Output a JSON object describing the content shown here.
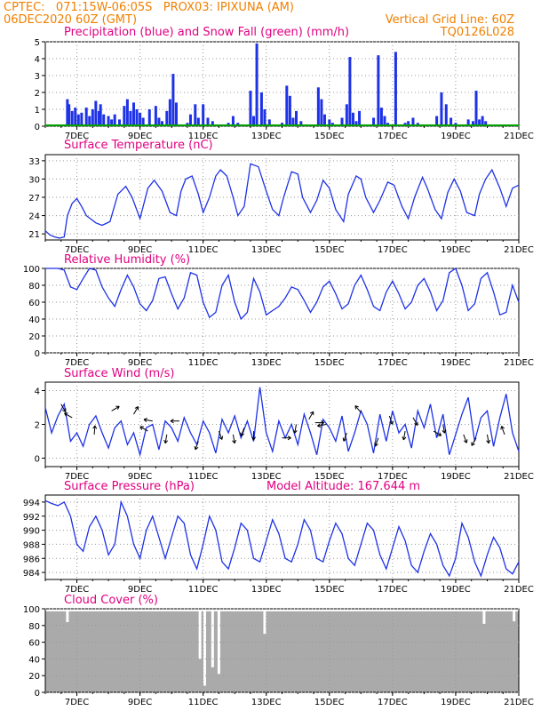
{
  "header": {
    "line1_left": "CPTEC:   071:15W-06:05S   PROX03: IPIXUNA (AM)",
    "line2_left": "06DEC2020 60Z (GMT)",
    "line2_right": "Vertical Grid Line: 60Z",
    "line3_right": "TQ0126L028"
  },
  "colors": {
    "header": "#f08000",
    "title": "#e00080",
    "line": "#1e32e6",
    "precip": "#1e32e6",
    "snow": "#00a000",
    "cloud": "#aaaaaa",
    "wind_arrow": "#000000",
    "frame": "#000000",
    "grid": "#999999"
  },
  "x_axis": {
    "min": 0,
    "max": 15,
    "tick_labels": [
      "7DEC",
      "9DEC",
      "11DEC",
      "13DEC",
      "15DEC",
      "17DEC",
      "19DEC",
      "21DEC"
    ],
    "tick_positions": [
      1,
      3,
      5,
      7,
      9,
      11,
      13,
      15
    ]
  },
  "chart_data": [
    {
      "type": "bar",
      "title": "Precipitation (blue) and Snow Fall (green) (mm/h)",
      "ylim": [
        0,
        5
      ],
      "yticks": [
        0,
        1,
        2,
        3,
        4,
        5
      ],
      "series": [
        {
          "name": "Precipitation",
          "x": [
            0.7,
            0.75,
            0.85,
            0.95,
            1.05,
            1.15,
            1.3,
            1.4,
            1.5,
            1.6,
            1.7,
            1.75,
            1.85,
            2.0,
            2.1,
            2.2,
            2.35,
            2.5,
            2.6,
            2.7,
            2.8,
            2.9,
            3.0,
            3.1,
            3.3,
            3.5,
            3.6,
            3.7,
            3.85,
            3.95,
            4.05,
            4.15,
            4.5,
            4.6,
            4.75,
            4.85,
            5.0,
            5.15,
            5.3,
            5.7,
            5.8,
            5.95,
            6.1,
            6.5,
            6.6,
            6.7,
            6.85,
            6.95,
            7.1,
            7.5,
            7.65,
            7.75,
            7.85,
            7.95,
            8.1,
            8.5,
            8.65,
            8.75,
            8.85,
            9.0,
            9.1,
            9.4,
            9.55,
            9.65,
            9.75,
            9.85,
            9.95,
            10.4,
            10.55,
            10.65,
            10.75,
            10.85,
            11.1,
            11.4,
            11.5,
            11.65,
            11.8,
            12.4,
            12.55,
            12.7,
            12.85,
            13.0,
            13.4,
            13.55,
            13.65,
            13.75,
            13.85,
            13.95
          ],
          "values": [
            1.6,
            1.3,
            0.9,
            1.1,
            0.7,
            0.8,
            1.1,
            0.6,
            1.0,
            1.5,
            0.9,
            1.3,
            0.7,
            0.6,
            0.4,
            0.7,
            0.4,
            1.2,
            1.6,
            0.9,
            1.4,
            1.0,
            0.8,
            0.5,
            1.0,
            1.2,
            0.5,
            0.3,
            0.9,
            1.6,
            3.1,
            1.4,
            0.2,
            0.7,
            1.3,
            0.5,
            1.3,
            0.5,
            0.3,
            0.1,
            0.2,
            0.6,
            0.2,
            2.1,
            0.6,
            4.9,
            2.0,
            1.0,
            0.4,
            0.2,
            2.4,
            1.8,
            0.5,
            0.9,
            0.3,
            0.1,
            2.3,
            1.6,
            0.7,
            0.4,
            0.2,
            0.5,
            1.3,
            4.1,
            0.8,
            0.3,
            0.9,
            0.5,
            4.2,
            1.1,
            0.6,
            0.2,
            4.4,
            0.2,
            0.3,
            0.5,
            0.2,
            0.6,
            2.0,
            1.3,
            0.5,
            0.2,
            0.4,
            0.3,
            2.1,
            0.4,
            0.6,
            0.3
          ]
        },
        {
          "name": "Snow Fall",
          "values": [
            0
          ]
        }
      ]
    },
    {
      "type": "line",
      "title": "Surface Temperature (nC)",
      "ylim": [
        20,
        34
      ],
      "yticks": [
        21,
        24,
        27,
        30,
        33
      ],
      "x": [
        0,
        0.15,
        0.3,
        0.45,
        0.6,
        0.7,
        0.85,
        1.0,
        1.15,
        1.3,
        1.6,
        1.8,
        2.05,
        2.3,
        2.55,
        2.75,
        3.0,
        3.25,
        3.45,
        3.7,
        3.95,
        4.15,
        4.3,
        4.45,
        4.65,
        4.85,
        5.0,
        5.2,
        5.4,
        5.55,
        5.75,
        5.95,
        6.1,
        6.3,
        6.5,
        6.75,
        7.0,
        7.2,
        7.4,
        7.55,
        7.8,
        8.0,
        8.15,
        8.4,
        8.6,
        8.8,
        9.0,
        9.2,
        9.45,
        9.6,
        9.85,
        10.0,
        10.15,
        10.4,
        10.6,
        10.85,
        11.05,
        11.3,
        11.5,
        11.7,
        11.95,
        12.1,
        12.35,
        12.55,
        12.75,
        12.95,
        13.15,
        13.35,
        13.6,
        13.75,
        13.95,
        14.15,
        14.4,
        14.6,
        14.8,
        15.0
      ],
      "values": [
        21.5,
        20.8,
        20.5,
        20.3,
        20.5,
        24.0,
        26.0,
        26.8,
        25.5,
        24.0,
        22.8,
        22.4,
        23.0,
        27.5,
        28.8,
        27.0,
        23.5,
        28.5,
        29.8,
        28.0,
        24.5,
        24.0,
        28.0,
        30.0,
        30.5,
        27.5,
        24.5,
        27.0,
        30.5,
        31.5,
        30.5,
        27.0,
        24.0,
        25.5,
        32.5,
        32.0,
        28.0,
        25.0,
        24.0,
        27.0,
        31.2,
        30.8,
        27.0,
        24.5,
        26.5,
        29.8,
        28.5,
        25.0,
        23.0,
        27.5,
        30.5,
        30.0,
        27.0,
        24.5,
        26.5,
        29.5,
        29.0,
        25.5,
        23.5,
        27.0,
        30.3,
        28.5,
        25.0,
        23.5,
        27.8,
        30.0,
        28.0,
        24.5,
        24.0,
        27.5,
        30.0,
        31.5,
        28.5,
        25.5,
        28.5,
        29.0
      ]
    },
    {
      "type": "line",
      "title": "Relative Humidity (%)",
      "ylim": [
        0,
        100
      ],
      "yticks": [
        0,
        20,
        40,
        60,
        80,
        100
      ],
      "x": [
        0,
        0.2,
        0.4,
        0.6,
        0.8,
        1.0,
        1.2,
        1.4,
        1.6,
        1.8,
        2.0,
        2.2,
        2.4,
        2.6,
        2.8,
        3.0,
        3.2,
        3.4,
        3.6,
        3.8,
        4.0,
        4.2,
        4.4,
        4.6,
        4.8,
        5.0,
        5.2,
        5.4,
        5.6,
        5.8,
        6.0,
        6.2,
        6.4,
        6.6,
        6.8,
        7.0,
        7.2,
        7.4,
        7.6,
        7.8,
        8.0,
        8.2,
        8.4,
        8.6,
        8.8,
        9.0,
        9.2,
        9.4,
        9.6,
        9.8,
        10.0,
        10.2,
        10.4,
        10.6,
        10.8,
        11.0,
        11.2,
        11.4,
        11.6,
        11.8,
        12.0,
        12.2,
        12.4,
        12.6,
        12.8,
        13.0,
        13.2,
        13.4,
        13.6,
        13.8,
        14.0,
        14.2,
        14.4,
        14.6,
        14.8,
        15.0
      ],
      "values": [
        100,
        100,
        100,
        98,
        78,
        75,
        88,
        100,
        98,
        78,
        65,
        55,
        75,
        92,
        78,
        58,
        50,
        62,
        88,
        90,
        70,
        52,
        65,
        95,
        92,
        60,
        42,
        48,
        80,
        92,
        60,
        40,
        48,
        88,
        72,
        45,
        50,
        55,
        65,
        78,
        75,
        62,
        48,
        60,
        78,
        85,
        70,
        52,
        58,
        80,
        92,
        75,
        55,
        50,
        72,
        85,
        70,
        52,
        60,
        80,
        88,
        72,
        50,
        62,
        95,
        100,
        80,
        50,
        58,
        88,
        95,
        72,
        45,
        48,
        80,
        60
      ]
    },
    {
      "type": "line",
      "title": "Surface Wind (m/s)",
      "ylim": [
        -0.5,
        4.5
      ],
      "yticks": [
        0,
        2,
        4
      ],
      "x": [
        0,
        0.2,
        0.4,
        0.6,
        0.8,
        1.0,
        1.2,
        1.4,
        1.6,
        1.8,
        2.0,
        2.2,
        2.4,
        2.6,
        2.8,
        3.0,
        3.2,
        3.4,
        3.6,
        3.8,
        4.0,
        4.2,
        4.4,
        4.6,
        4.8,
        5.0,
        5.2,
        5.4,
        5.6,
        5.8,
        6.0,
        6.2,
        6.4,
        6.6,
        6.8,
        7.0,
        7.2,
        7.4,
        7.6,
        7.8,
        8.0,
        8.2,
        8.4,
        8.6,
        8.8,
        9.0,
        9.2,
        9.4,
        9.6,
        9.8,
        10.0,
        10.2,
        10.4,
        10.6,
        10.8,
        11.0,
        11.2,
        11.4,
        11.6,
        11.8,
        12.0,
        12.2,
        12.4,
        12.6,
        12.8,
        13.0,
        13.2,
        13.4,
        13.6,
        13.8,
        14.0,
        14.2,
        14.4,
        14.6,
        14.8,
        15.0
      ],
      "values": [
        3.0,
        1.5,
        2.5,
        3.2,
        1.0,
        1.5,
        0.7,
        2.0,
        2.5,
        1.5,
        0.6,
        1.8,
        2.2,
        0.8,
        1.5,
        0.2,
        1.8,
        2.0,
        0.5,
        2.2,
        1.8,
        1.0,
        2.4,
        1.5,
        0.8,
        2.2,
        1.5,
        0.3,
        2.3,
        1.5,
        2.5,
        1.2,
        2.2,
        1.0,
        4.2,
        1.5,
        0.4,
        2.2,
        1.2,
        2.0,
        0.8,
        2.6,
        1.5,
        0.2,
        2.3,
        1.8,
        1.0,
        2.5,
        0.4,
        1.5,
        2.8,
        2.0,
        0.3,
        2.6,
        1.0,
        2.8,
        1.5,
        2.0,
        0.6,
        2.8,
        1.8,
        3.2,
        1.2,
        2.6,
        0.2,
        1.4,
        2.6,
        3.6,
        1.0,
        2.4,
        2.8,
        0.7,
        2.4,
        3.8,
        1.5,
        0.4
      ]
    },
    {
      "type": "line",
      "title": "Surface Pressure (hPa)",
      "annotation": "Model Altitude: 167.644 m",
      "ylim": [
        983,
        995
      ],
      "yticks": [
        984,
        986,
        988,
        990,
        992,
        994
      ],
      "x": [
        0,
        0.2,
        0.4,
        0.6,
        0.8,
        1.0,
        1.2,
        1.4,
        1.6,
        1.8,
        2.0,
        2.2,
        2.4,
        2.6,
        2.8,
        3.0,
        3.2,
        3.4,
        3.6,
        3.8,
        4.0,
        4.2,
        4.4,
        4.6,
        4.8,
        5.0,
        5.2,
        5.4,
        5.6,
        5.8,
        6.0,
        6.2,
        6.4,
        6.6,
        6.8,
        7.0,
        7.2,
        7.4,
        7.6,
        7.8,
        8.0,
        8.2,
        8.4,
        8.6,
        8.8,
        9.0,
        9.2,
        9.4,
        9.6,
        9.8,
        10.0,
        10.2,
        10.4,
        10.6,
        10.8,
        11.0,
        11.2,
        11.4,
        11.6,
        11.8,
        12.0,
        12.2,
        12.4,
        12.6,
        12.8,
        13.0,
        13.2,
        13.4,
        13.6,
        13.8,
        14.0,
        14.2,
        14.4,
        14.6,
        14.8,
        15.0
      ],
      "values": [
        994.2,
        993.8,
        993.5,
        994.0,
        992.0,
        988.0,
        987.0,
        990.5,
        992.0,
        990.0,
        986.5,
        988.0,
        994.0,
        992.0,
        988.0,
        986.0,
        990.0,
        992.0,
        989.0,
        986.0,
        989.0,
        992.0,
        991.0,
        986.5,
        984.5,
        988.0,
        992.0,
        990.0,
        985.5,
        984.5,
        987.5,
        991.0,
        990.0,
        986.0,
        985.5,
        988.5,
        991.5,
        989.5,
        986.0,
        985.5,
        988.0,
        991.5,
        990.0,
        986.0,
        985.5,
        988.5,
        991.0,
        989.5,
        986.0,
        985.0,
        988.0,
        991.0,
        990.0,
        986.5,
        984.5,
        987.5,
        990.5,
        988.5,
        985.0,
        984.0,
        987.0,
        989.5,
        988.0,
        985.0,
        983.5,
        986.0,
        991.0,
        989.0,
        985.5,
        983.5,
        986.5,
        989.0,
        987.5,
        984.5,
        983.8,
        985.5
      ]
    },
    {
      "type": "bar",
      "title": "Cloud Cover (%)",
      "ylim": [
        0,
        100
      ],
      "yticks": [
        0,
        20,
        40,
        60,
        80,
        100
      ],
      "x": [
        0.7,
        4.9,
        5.05,
        5.3,
        5.5,
        6.95,
        13.9,
        14.85
      ],
      "values": [
        84,
        40,
        8,
        30,
        22,
        70,
        82,
        85
      ],
      "baseline": 97
    }
  ],
  "wind_arrows": [
    {
      "x": 0.5,
      "speed": 3.2,
      "dir": 150
    },
    {
      "x": 0.85,
      "speed": 2.4,
      "dir": 300
    },
    {
      "x": 1.55,
      "speed": 1.4,
      "dir": 5
    },
    {
      "x": 2.1,
      "speed": 2.8,
      "dir": 60
    },
    {
      "x": 2.8,
      "speed": 2.6,
      "dir": 30
    },
    {
      "x": 3.25,
      "speed": 1.6,
      "dir": 300
    },
    {
      "x": 3.4,
      "speed": 2.2,
      "dir": 280
    },
    {
      "x": 3.85,
      "speed": 1.4,
      "dir": 190
    },
    {
      "x": 4.25,
      "speed": 2.2,
      "dir": 270
    },
    {
      "x": 4.85,
      "speed": 1.0,
      "dir": 200
    },
    {
      "x": 5.5,
      "speed": 1.6,
      "dir": 160
    },
    {
      "x": 5.95,
      "speed": 1.4,
      "dir": 170
    },
    {
      "x": 6.3,
      "speed": 1.8,
      "dir": 200
    },
    {
      "x": 6.6,
      "speed": 1.6,
      "dir": 180
    },
    {
      "x": 7.5,
      "speed": 1.2,
      "dir": 90
    },
    {
      "x": 7.95,
      "speed": 2.0,
      "dir": 190
    },
    {
      "x": 8.35,
      "speed": 2.3,
      "dir": 30
    },
    {
      "x": 8.55,
      "speed": 2.1,
      "dir": 90
    },
    {
      "x": 8.9,
      "speed": 2.0,
      "dir": 260
    },
    {
      "x": 9.55,
      "speed": 1.5,
      "dir": 200
    },
    {
      "x": 10.0,
      "speed": 2.7,
      "dir": 320
    },
    {
      "x": 10.55,
      "speed": 1.2,
      "dir": 200
    },
    {
      "x": 10.9,
      "speed": 2.5,
      "dir": 160
    },
    {
      "x": 11.4,
      "speed": 1.6,
      "dir": 190
    },
    {
      "x": 11.65,
      "speed": 2.4,
      "dir": 150
    },
    {
      "x": 12.3,
      "speed": 1.6,
      "dir": 120
    },
    {
      "x": 12.6,
      "speed": 2.0,
      "dir": 170
    },
    {
      "x": 13.25,
      "speed": 1.4,
      "dir": 160
    },
    {
      "x": 13.65,
      "speed": 1.2,
      "dir": 210
    },
    {
      "x": 14.0,
      "speed": 1.4,
      "dir": 170
    },
    {
      "x": 14.55,
      "speed": 1.4,
      "dir": 340
    }
  ]
}
